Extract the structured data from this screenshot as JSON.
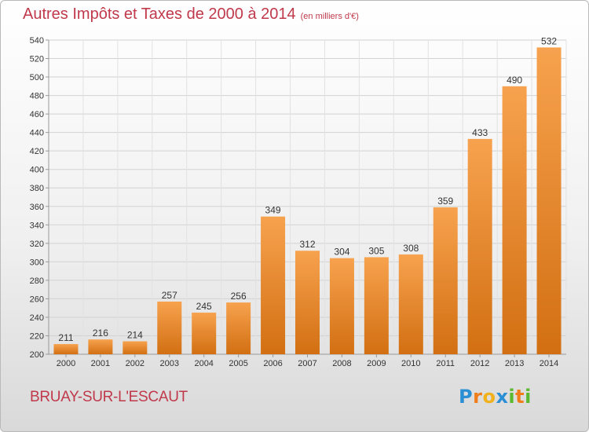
{
  "title": "Autres Impôts et Taxes de 2000 à 2014",
  "subtitle": "(en milliers d'€)",
  "city": "BRUAY-SUR-L'ESCAUT",
  "logo": {
    "letters": [
      "P",
      "r",
      "o",
      "x",
      "i",
      "t",
      "i"
    ],
    "colors": [
      "#2b8fd6",
      "#f07d1a",
      "#f0b11a",
      "#2b8fd6",
      "#5cb82e",
      "#f07d1a",
      "#5cb82e"
    ]
  },
  "chart_data": {
    "type": "bar",
    "categories": [
      "2000",
      "2001",
      "2002",
      "2003",
      "2004",
      "2005",
      "2006",
      "2007",
      "2008",
      "2009",
      "2010",
      "2011",
      "2012",
      "2013",
      "2014"
    ],
    "values": [
      211,
      216,
      214,
      257,
      245,
      256,
      349,
      312,
      304,
      305,
      308,
      359,
      433,
      490,
      532
    ],
    "title": "Autres Impôts et Taxes de 2000 à 2014",
    "ylim": [
      200,
      540
    ],
    "yticks": [
      200,
      220,
      240,
      260,
      280,
      300,
      320,
      340,
      360,
      380,
      400,
      420,
      440,
      460,
      480,
      500,
      520,
      540
    ],
    "grid": true,
    "bar_color": "#f0902a"
  }
}
